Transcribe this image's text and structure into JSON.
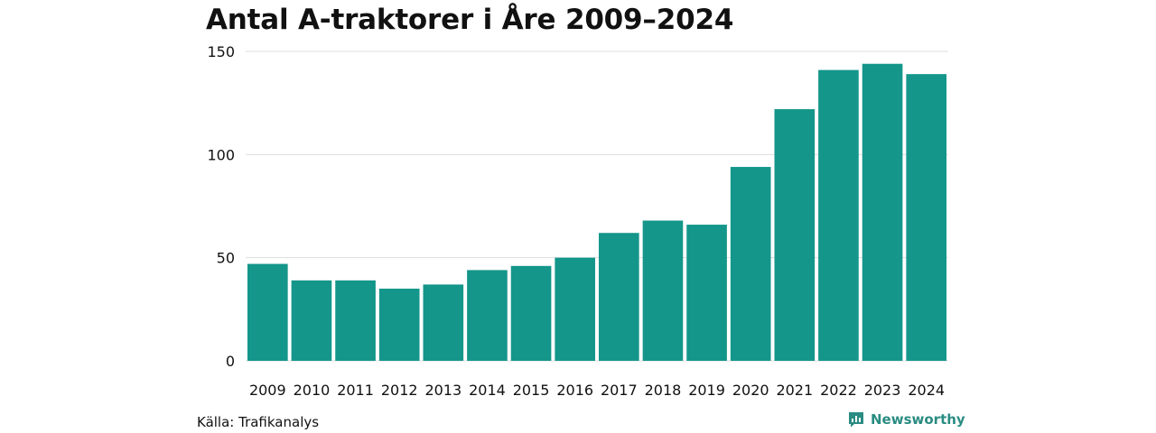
{
  "chart_data": {
    "type": "bar",
    "title": "Antal A-traktorer i Åre 2009–2024",
    "categories": [
      "2009",
      "2010",
      "2011",
      "2012",
      "2013",
      "2014",
      "2015",
      "2016",
      "2017",
      "2018",
      "2019",
      "2020",
      "2021",
      "2022",
      "2023",
      "2024"
    ],
    "values": [
      47,
      39,
      39,
      35,
      37,
      44,
      46,
      50,
      62,
      68,
      66,
      94,
      122,
      141,
      144,
      139
    ],
    "ylim": [
      0,
      150
    ],
    "yticks": [
      0,
      50,
      100,
      150
    ],
    "xlabel": "",
    "ylabel": "",
    "grid": true,
    "bar_color": "#14968a",
    "grid_color": "#dddddd"
  },
  "footer": {
    "source": "Källa: Trafikanalys",
    "brand": "Newsworthy",
    "brand_color": "#2a8c82"
  }
}
